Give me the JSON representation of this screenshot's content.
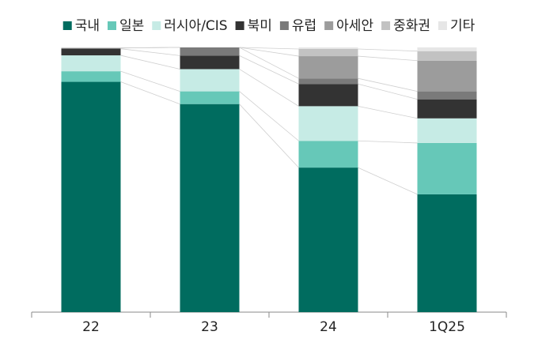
{
  "chart_data": {
    "type": "stacked-bar",
    "categories": [
      "22",
      "23",
      "24",
      "1Q25"
    ],
    "ylim": [
      0,
      100
    ],
    "series": [
      {
        "name": "국내",
        "color": "#006c5f",
        "values": [
          87,
          78.6,
          54.6,
          44.5
        ]
      },
      {
        "name": "일본",
        "color": "#66c8b8",
        "values": [
          4,
          4.8,
          10.1,
          19.4
        ]
      },
      {
        "name": "러시아/CIS",
        "color": "#c6ebe5",
        "values": [
          6,
          8.4,
          13.1,
          9.3
        ]
      },
      {
        "name": "북미",
        "color": "#333333",
        "values": [
          2.5,
          5.1,
          8.4,
          7.2
        ]
      },
      {
        "name": "유럽",
        "color": "#7a7a7a",
        "values": [
          0.3,
          3.1,
          2.1,
          3
        ]
      },
      {
        "name": "아세안",
        "color": "#9c9c9c",
        "values": [
          0,
          0,
          8.4,
          11.6
        ]
      },
      {
        "name": "중화권",
        "color": "#c2c2c2",
        "values": [
          0,
          0,
          2.7,
          3.6
        ]
      },
      {
        "name": "기타",
        "color": "#e6e6e6",
        "values": [
          0.2,
          0,
          0.6,
          1.4
        ]
      }
    ]
  }
}
